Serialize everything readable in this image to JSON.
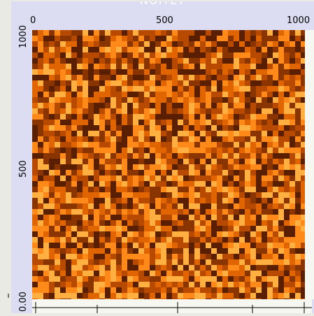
{
  "window": {
    "title": "NOITET"
  },
  "axes": {
    "x_ticks": [
      "0",
      "500",
      "1000"
    ],
    "y_ticks": [
      "1000",
      "500",
      "0.00"
    ]
  },
  "chart_data": {
    "type": "heatmap",
    "title": "NOITET",
    "xlabel": "",
    "ylabel": "",
    "xlim": [
      0,
      1000
    ],
    "ylim": [
      0,
      1000
    ],
    "colormap": [
      "#5a1e00",
      "#8a3400",
      "#b84a00",
      "#e06400",
      "#ff8a1a",
      "#ffb040"
    ],
    "grid": false
  },
  "colors": {
    "background": "#eaeae4",
    "window": "#dcdcf2",
    "title": "#ffffff"
  }
}
